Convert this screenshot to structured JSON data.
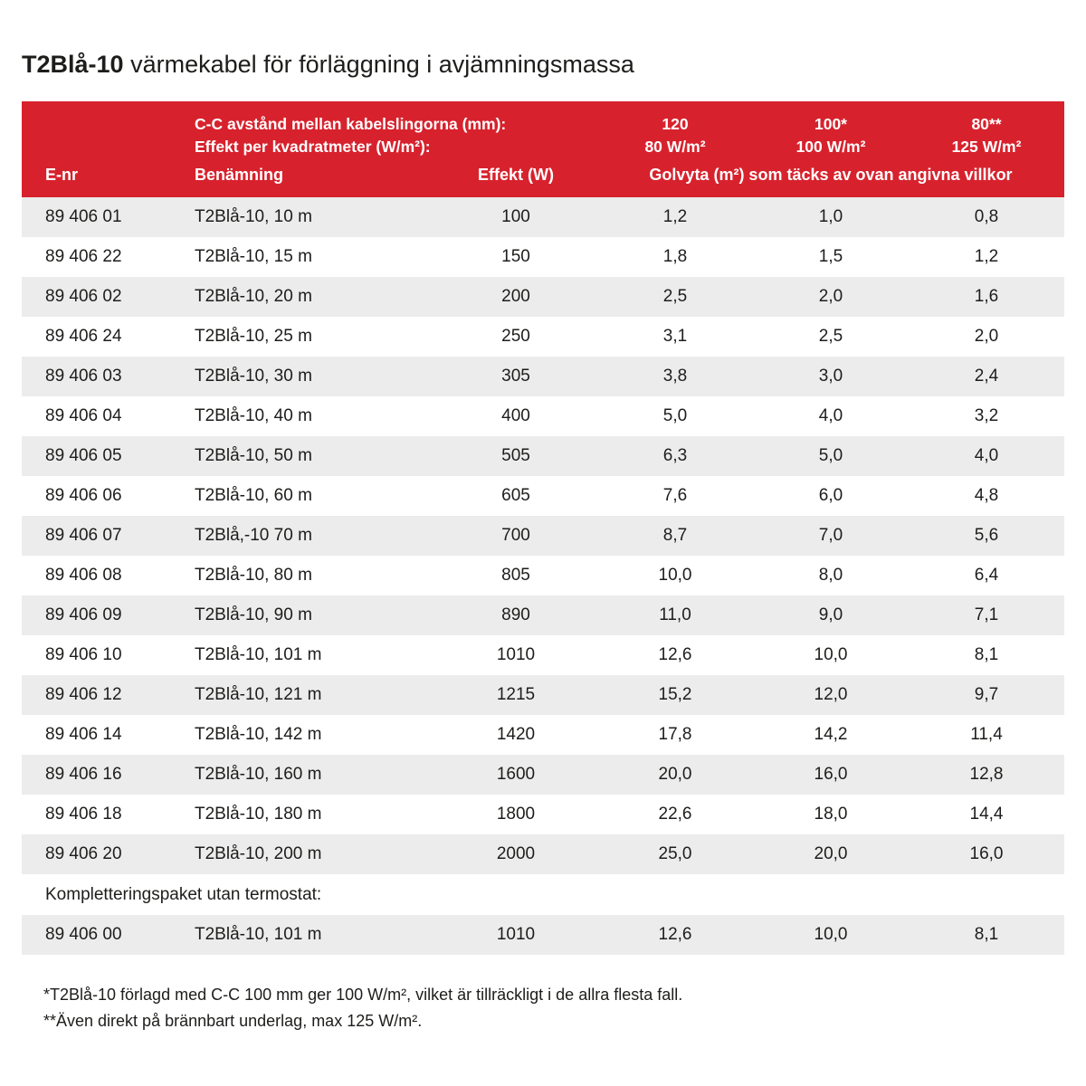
{
  "page": {
    "title_product": "T2Blå-10",
    "title_rest": "värmekabel för förläggning i avjämningsmassa"
  },
  "colors": {
    "header_bg": "#d7222d",
    "header_text": "#ffffff",
    "row_alt_bg": "#ececec",
    "text": "#1d1d1b"
  },
  "table": {
    "header": {
      "line1_label": "C-C avstånd mellan kabelslingorna (mm):",
      "line2_label": "Effekt per kvadratmeter (W/m²):",
      "cc_values": [
        "120",
        "100*",
        "80**"
      ],
      "power_values": [
        "80 W/m²",
        "100 W/m²",
        "125 W/m²"
      ],
      "col_e_nr": "E-nr",
      "col_benamning": "Benämning",
      "col_effekt": "Effekt (W)",
      "col_golvyta": "Golvyta (m²) som täcks av ovan angivna villkor"
    },
    "rows": [
      [
        "89 406 01",
        "T2Blå-10, 10 m",
        "100",
        "1,2",
        "1,0",
        "0,8"
      ],
      [
        "89 406 22",
        "T2Blå-10, 15 m",
        "150",
        "1,8",
        "1,5",
        "1,2"
      ],
      [
        "89 406 02",
        "T2Blå-10, 20 m",
        "200",
        "2,5",
        "2,0",
        "1,6"
      ],
      [
        "89 406 24",
        "T2Blå-10, 25 m",
        "250",
        "3,1",
        "2,5",
        "2,0"
      ],
      [
        "89 406 03",
        "T2Blå-10, 30 m",
        "305",
        "3,8",
        "3,0",
        "2,4"
      ],
      [
        "89 406 04",
        "T2Blå-10, 40 m",
        "400",
        "5,0",
        "4,0",
        "3,2"
      ],
      [
        "89 406 05",
        "T2Blå-10, 50 m",
        "505",
        "6,3",
        "5,0",
        "4,0"
      ],
      [
        "89 406 06",
        "T2Blå-10, 60 m",
        "605",
        "7,6",
        "6,0",
        "4,8"
      ],
      [
        "89 406 07",
        "T2Blå,-10 70 m",
        "700",
        "8,7",
        "7,0",
        "5,6"
      ],
      [
        "89 406 08",
        "T2Blå-10, 80 m",
        "805",
        "10,0",
        "8,0",
        "6,4"
      ],
      [
        "89 406 09",
        "T2Blå-10, 90 m",
        "890",
        "11,0",
        "9,0",
        "7,1"
      ],
      [
        "89 406 10",
        "T2Blå-10, 101 m",
        "1010",
        "12,6",
        "10,0",
        "8,1"
      ],
      [
        "89 406 12",
        "T2Blå-10, 121 m",
        "1215",
        "15,2",
        "12,0",
        "9,7"
      ],
      [
        "89 406 14",
        "T2Blå-10, 142 m",
        "1420",
        "17,8",
        "14,2",
        "11,4"
      ],
      [
        "89 406 16",
        "T2Blå-10, 160 m",
        "1600",
        "20,0",
        "16,0",
        "12,8"
      ],
      [
        "89 406 18",
        "T2Blå-10, 180 m",
        "1800",
        "22,6",
        "18,0",
        "14,4"
      ],
      [
        "89 406 20",
        "T2Blå-10, 200 m",
        "2000",
        "25,0",
        "20,0",
        "16,0"
      ]
    ],
    "section_label": "Kompletteringspaket utan termostat:",
    "extra_rows": [
      [
        "89 406 00",
        "T2Blå-10, 101 m",
        "1010",
        "12,6",
        "10,0",
        "8,1"
      ]
    ]
  },
  "footnotes": [
    "*T2Blå-10 förlagd med C-C 100 mm ger 100 W/m², vilket är tillräckligt i de allra flesta fall.",
    "**Även direkt på brännbart underlag, max 125 W/m²."
  ]
}
